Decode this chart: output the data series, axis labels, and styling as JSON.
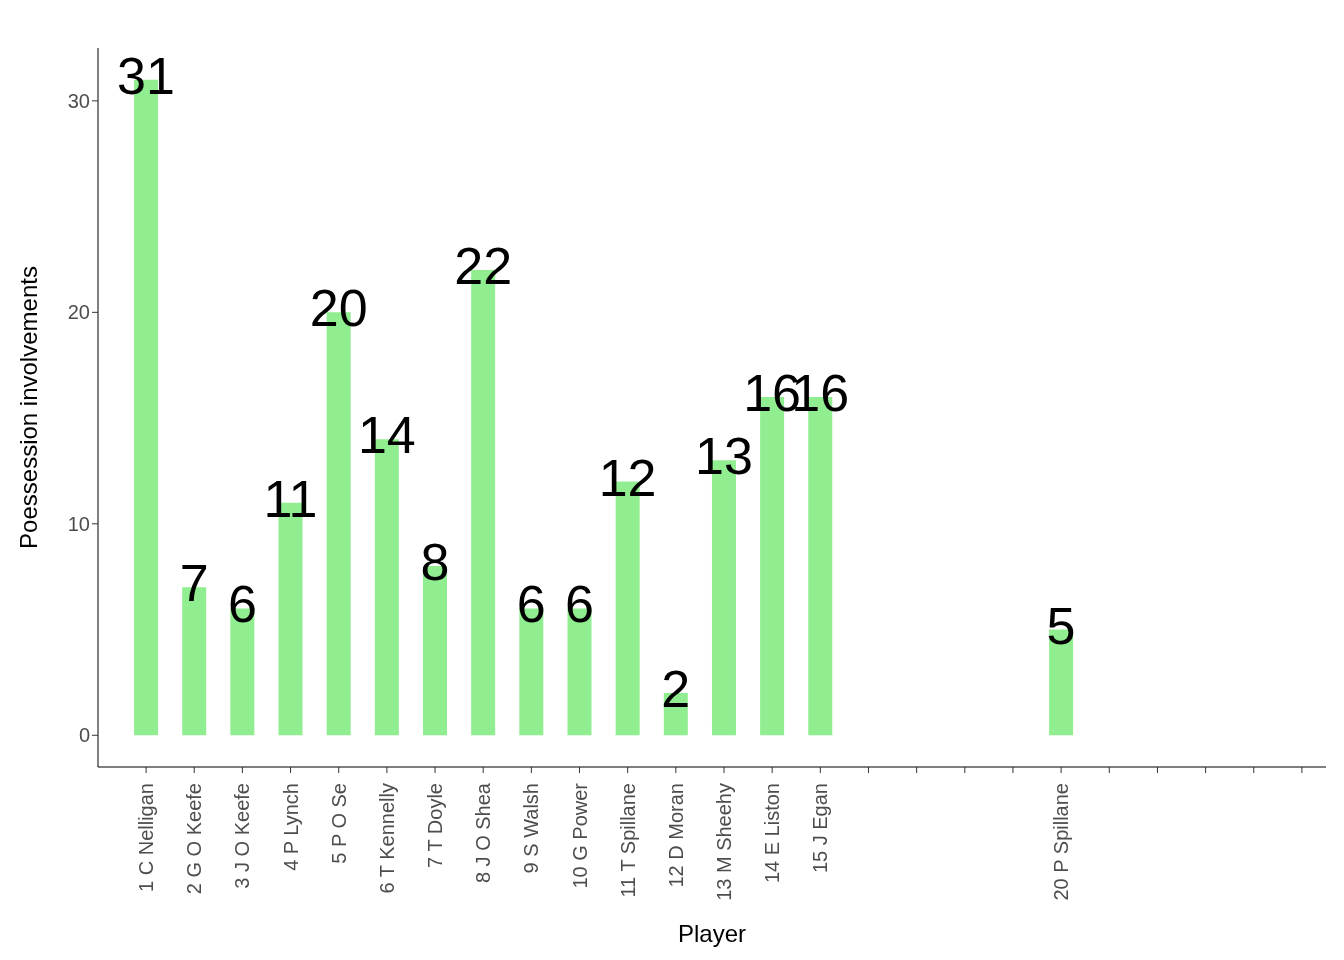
{
  "chart_data": {
    "type": "bar",
    "xlabel": "Player",
    "ylabel": "Poessession involvements",
    "categories": [
      "1 C Nelligan",
      "2 G O Keefe",
      "3 J  O Keefe",
      "4 P Lynch",
      "5 P O Se",
      "6 T Kennelly",
      "7 T Doyle",
      "8 J O Shea",
      "9 S Walsh",
      "10 G Power",
      "11 T Spillane",
      "12 D Moran",
      "13 M Sheehy",
      "14 E Liston",
      "15 J Egan",
      null,
      null,
      null,
      null,
      "20 P Spillane",
      null,
      null,
      null,
      null,
      null
    ],
    "values": [
      31,
      7,
      6,
      11,
      20,
      14,
      8,
      22,
      6,
      6,
      12,
      2,
      13,
      16,
      16,
      null,
      null,
      null,
      null,
      5,
      null,
      null,
      null,
      null,
      null
    ],
    "color": "#90ee90",
    "ylim": [
      -1.5,
      32.5
    ],
    "yticks": [
      0,
      10,
      20,
      30
    ],
    "grid": false,
    "data_labels": true
  }
}
